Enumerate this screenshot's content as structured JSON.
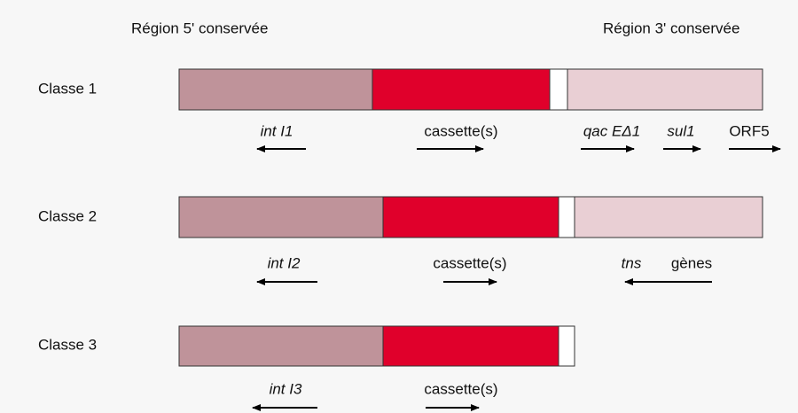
{
  "header": {
    "left": "Région 5' conservée",
    "right": "Région 3' conservée"
  },
  "classes": [
    {
      "label": "Classe 1",
      "genes": [
        "int I1",
        "cassette(s)",
        "qac EΔ1",
        "sul1",
        "ORF5"
      ]
    },
    {
      "label": "Classe 2",
      "genes": [
        "int I2",
        "cassette(s)",
        "tns",
        "gènes"
      ]
    },
    {
      "label": "Classe 3",
      "genes": [
        "int I3",
        "cassette(s)"
      ]
    }
  ]
}
